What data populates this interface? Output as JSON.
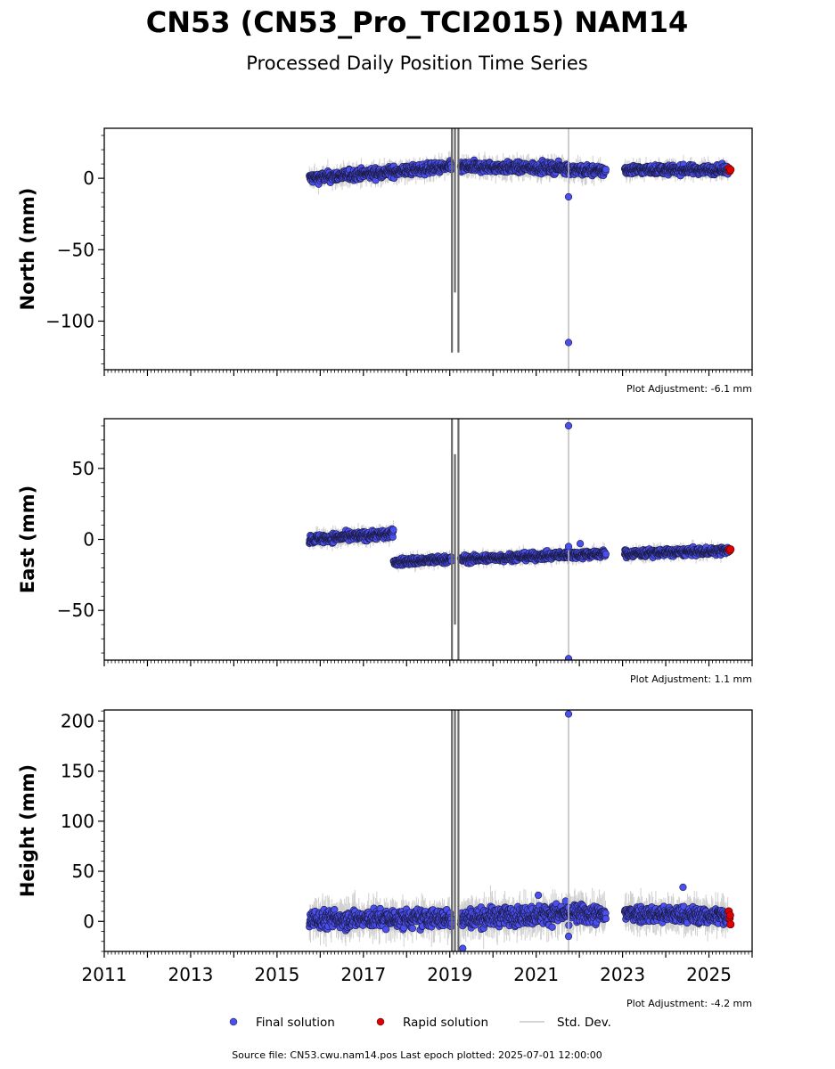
{
  "title": "CN53 (CN53_Pro_TCI2015) NAM14",
  "subtitle": "Processed Daily Position Time Series",
  "footer": "Source file: CN53.cwu.nam14.pos  Last epoch plotted: 2025-07-01 12:00:00",
  "legend": [
    {
      "label": "Final solution",
      "marker": "dot",
      "color": "#4b4ff0"
    },
    {
      "label": "Rapid solution",
      "marker": "dot",
      "color": "#e00000"
    },
    {
      "label": "Std. Dev.",
      "marker": "line",
      "color": "#c8c8c8"
    }
  ],
  "colors": {
    "final": "#4b4ff0",
    "rapid": "#e00000",
    "stddev": "#bdbdbd",
    "gap_line": "#6a6a6a"
  },
  "chart_data": [
    {
      "type": "scatter",
      "ylabel": "North (mm)",
      "adjustment": "Plot Adjustment: -6.1 mm",
      "xlim": [
        2011.0,
        2026.0
      ],
      "ylim": [
        -134,
        35
      ],
      "yticks": [
        0,
        -50,
        -100
      ],
      "ytick_labels": [
        "0",
        "−50",
        "−100"
      ],
      "x_tick_labels_shown": false,
      "segments": [
        {
          "start": 2015.75,
          "end": 2019.05,
          "y_start": 0,
          "y_end": 8,
          "spread": 3.5
        },
        {
          "start": 2019.25,
          "end": 2021.75,
          "y_start": 8,
          "y_end": 7,
          "spread": 3.5
        },
        {
          "start": 2021.75,
          "end": 2022.62,
          "y_start": 6,
          "y_end": 5,
          "spread": 3.5
        },
        {
          "start": 2023.05,
          "end": 2025.45,
          "y_start": 6,
          "y_end": 6,
          "spread": 3
        }
      ],
      "outliers": [
        {
          "x": 2021.75,
          "y": -13
        },
        {
          "x": 2021.75,
          "y": -115
        }
      ],
      "rapid_points": [
        {
          "x": 2025.46,
          "y": 7
        },
        {
          "x": 2025.48,
          "y": 5
        },
        {
          "x": 2025.5,
          "y": 6
        }
      ],
      "stddev_spikes": [
        {
          "x": 2019.05,
          "y_low": -122,
          "y_high": 35,
          "style": "gap"
        },
        {
          "x": 2019.12,
          "y_low": -80,
          "y_high": 35,
          "style": "gap"
        },
        {
          "x": 2019.2,
          "y_low": -122,
          "y_high": 35,
          "style": "gap"
        },
        {
          "x": 2021.75,
          "y_low": -134,
          "y_high": 35,
          "style": "light"
        }
      ]
    },
    {
      "type": "scatter",
      "ylabel": "East (mm)",
      "adjustment": "Plot Adjustment: 1.1 mm",
      "xlim": [
        2011.0,
        2026.0
      ],
      "ylim": [
        -85,
        85
      ],
      "yticks": [
        50,
        0,
        -50
      ],
      "ytick_labels": [
        "50",
        "0",
        "−50"
      ],
      "x_tick_labels_shown": false,
      "segments": [
        {
          "start": 2015.75,
          "end": 2017.7,
          "y_start": 0,
          "y_end": 4,
          "spread": 3
        },
        {
          "start": 2017.7,
          "end": 2019.05,
          "y_start": -16,
          "y_end": -14,
          "spread": 2.5
        },
        {
          "start": 2019.25,
          "end": 2021.75,
          "y_start": -14,
          "y_end": -11,
          "spread": 2.5
        },
        {
          "start": 2021.75,
          "end": 2022.62,
          "y_start": -11,
          "y_end": -10,
          "spread": 2.5
        },
        {
          "start": 2023.05,
          "end": 2025.45,
          "y_start": -10,
          "y_end": -8,
          "spread": 2.5
        }
      ],
      "outliers": [
        {
          "x": 2021.75,
          "y": 80
        },
        {
          "x": 2021.75,
          "y": -84
        },
        {
          "x": 2021.75,
          "y": -5
        },
        {
          "x": 2022.02,
          "y": -3
        }
      ],
      "rapid_points": [
        {
          "x": 2025.46,
          "y": -7
        },
        {
          "x": 2025.48,
          "y": -8
        },
        {
          "x": 2025.5,
          "y": -7
        }
      ],
      "stddev_spikes": [
        {
          "x": 2019.05,
          "y_low": -85,
          "y_high": 85,
          "style": "gap"
        },
        {
          "x": 2019.12,
          "y_low": -60,
          "y_high": 60,
          "style": "gap"
        },
        {
          "x": 2019.2,
          "y_low": -85,
          "y_high": 85,
          "style": "gap"
        },
        {
          "x": 2021.75,
          "y_low": -85,
          "y_high": 85,
          "style": "light"
        }
      ]
    },
    {
      "type": "scatter",
      "ylabel": "Height (mm)",
      "adjustment": "Plot Adjustment: -4.2 mm",
      "xlim": [
        2011.0,
        2026.0
      ],
      "ylim": [
        -30,
        211
      ],
      "yticks": [
        200,
        150,
        100,
        50,
        0
      ],
      "ytick_labels": [
        "200",
        "150",
        "100",
        "50",
        "0"
      ],
      "x_tick_labels_shown": true,
      "xticks": [
        2011,
        2013,
        2015,
        2017,
        2019,
        2021,
        2023,
        2025
      ],
      "xtick_labels": [
        "2011",
        "2013",
        "2015",
        "2017",
        "2019",
        "2021",
        "2023",
        "2025"
      ],
      "segments": [
        {
          "start": 2015.75,
          "end": 2019.05,
          "y_start": 2,
          "y_end": 3,
          "spread": 9
        },
        {
          "start": 2019.25,
          "end": 2021.75,
          "y_start": 3,
          "y_end": 8,
          "spread": 9
        },
        {
          "start": 2021.75,
          "end": 2022.62,
          "y_start": 8,
          "y_end": 6,
          "spread": 9
        },
        {
          "start": 2023.05,
          "end": 2025.45,
          "y_start": 8,
          "y_end": 5,
          "spread": 8
        }
      ],
      "outliers": [
        {
          "x": 2021.75,
          "y": 207
        },
        {
          "x": 2021.75,
          "y": -15
        },
        {
          "x": 2019.3,
          "y": -27
        },
        {
          "x": 2024.4,
          "y": 34
        },
        {
          "x": 2021.05,
          "y": 26
        }
      ],
      "rapid_points": [
        {
          "x": 2025.46,
          "y": 10
        },
        {
          "x": 2025.48,
          "y": 3
        },
        {
          "x": 2025.5,
          "y": -3
        },
        {
          "x": 2025.49,
          "y": 6
        }
      ],
      "stddev_spikes": [
        {
          "x": 2019.05,
          "y_low": -30,
          "y_high": 211,
          "style": "gap"
        },
        {
          "x": 2019.12,
          "y_low": -30,
          "y_high": 211,
          "style": "gap"
        },
        {
          "x": 2019.2,
          "y_low": -30,
          "y_high": 211,
          "style": "gap"
        },
        {
          "x": 2021.75,
          "y_low": -30,
          "y_high": 211,
          "style": "light"
        }
      ]
    }
  ]
}
